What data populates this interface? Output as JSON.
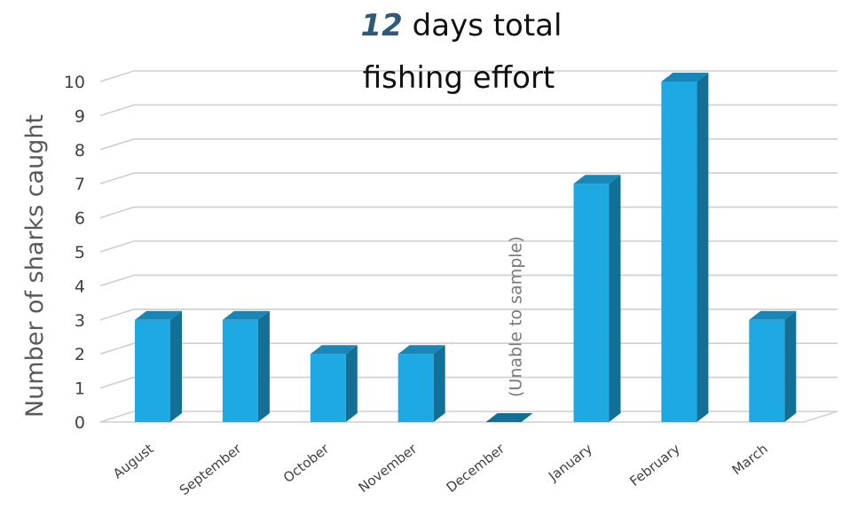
{
  "chart_data": {
    "type": "bar",
    "title_number": "12",
    "title_line1_rest": "days total",
    "title_line2": "fishing effort",
    "ylabel": "Number of sharks caught",
    "xlabel": "",
    "ylim": [
      0,
      10
    ],
    "yticks": [
      "0",
      "1",
      "2",
      "3",
      "4",
      "5",
      "6",
      "7",
      "8",
      "9",
      "10"
    ],
    "categories": [
      "August",
      "September",
      "October",
      "November",
      "December",
      "January",
      "February",
      "March"
    ],
    "values": [
      3,
      3,
      2,
      2,
      0,
      7,
      10,
      3
    ],
    "annotation": "(Unable to sample)",
    "annotation_category": "December",
    "grid": true,
    "style": "3d-column",
    "colors": {
      "front": "#1ea9e2",
      "side": "#146f96",
      "top": "#1887b8"
    }
  }
}
